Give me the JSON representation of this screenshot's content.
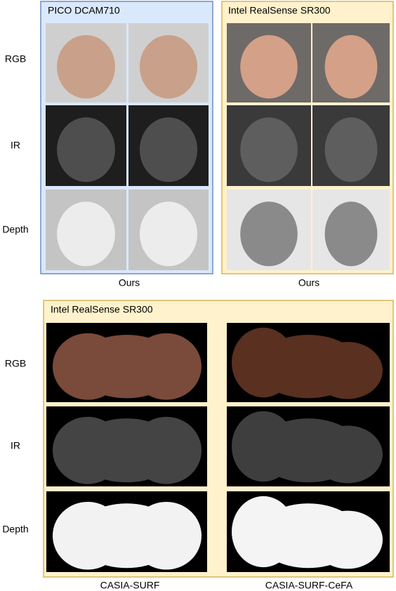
{
  "top": {
    "row_labels": [
      "RGB",
      "IR",
      "Depth"
    ],
    "panels": [
      {
        "title": "PICO DCAM710",
        "caption": "Ours"
      },
      {
        "title": "Intel RealSense SR300",
        "caption": "Ours"
      }
    ]
  },
  "bottom": {
    "title": "Intel RealSense SR300",
    "row_labels": [
      "RGB",
      "IR",
      "Depth"
    ],
    "captions": [
      "CASIA-SURF",
      "CASIA-SURF-CeFA"
    ]
  }
}
